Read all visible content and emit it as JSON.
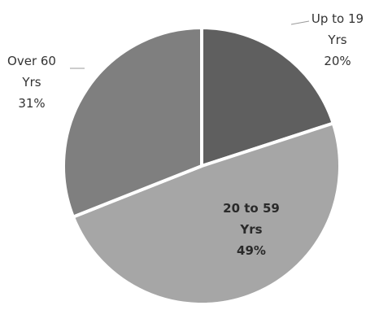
{
  "chart_data": {
    "type": "pie",
    "title": "",
    "start_angle_deg": 0,
    "direction": "clockwise",
    "slices": [
      {
        "label_lines": [
          "Up to 19",
          "Yrs"
        ],
        "value_label": "20%",
        "value": 20,
        "color": "#5f5f5f"
      },
      {
        "label_lines": [
          "20 to 59",
          "Yrs"
        ],
        "value_label": "49%",
        "value": 49,
        "color": "#a6a6a6"
      },
      {
        "label_lines": [
          "Over 60",
          "Yrs"
        ],
        "value_label": "31%",
        "value": 31,
        "color": "#7f7f7f"
      }
    ]
  }
}
